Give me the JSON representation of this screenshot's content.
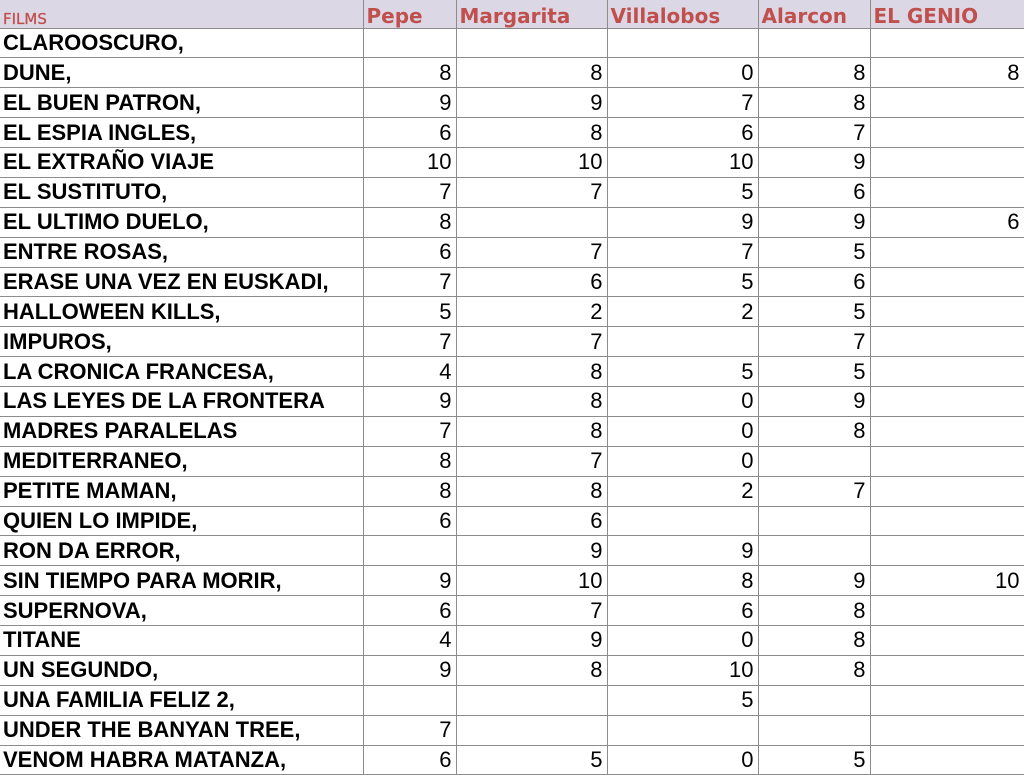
{
  "headers": [
    "FILMS",
    "Pepe",
    "Margarita",
    "Villalobos",
    "Alarcon",
    "EL GENIO"
  ],
  "rows": [
    [
      "CLAROOSCURO,",
      "",
      "",
      "",
      "",
      ""
    ],
    [
      "DUNE,",
      "8",
      "8",
      "0",
      "8",
      "8"
    ],
    [
      "EL BUEN PATRON,",
      "9",
      "9",
      "7",
      "8",
      ""
    ],
    [
      "EL ESPIA INGLES,",
      "6",
      "8",
      "6",
      "7",
      ""
    ],
    [
      "EL EXTRAÑO VIAJE",
      "10",
      "10",
      "10",
      "9",
      ""
    ],
    [
      "EL SUSTITUTO,",
      "7",
      "7",
      "5",
      "6",
      ""
    ],
    [
      "EL ULTIMO DUELO,",
      "8",
      "",
      "9",
      "9",
      "6"
    ],
    [
      "ENTRE ROSAS,",
      "6",
      "7",
      "7",
      "5",
      ""
    ],
    [
      "ERASE UNA VEZ EN EUSKADI,",
      "7",
      "6",
      "5",
      "6",
      ""
    ],
    [
      "HALLOWEEN KILLS,",
      "5",
      "2",
      "2",
      "5",
      ""
    ],
    [
      "IMPUROS,",
      "7",
      "7",
      "",
      "7",
      ""
    ],
    [
      "LA CRONICA FRANCESA,",
      "4",
      "8",
      "5",
      "5",
      ""
    ],
    [
      "LAS LEYES DE LA FRONTERA",
      "9",
      "8",
      "0",
      "9",
      ""
    ],
    [
      "MADRES PARALELAS",
      "7",
      "8",
      "0",
      "8",
      ""
    ],
    [
      "MEDITERRANEO,",
      "8",
      "7",
      "0",
      "",
      ""
    ],
    [
      "PETITE MAMAN,",
      "8",
      "8",
      "2",
      "7",
      ""
    ],
    [
      "QUIEN LO IMPIDE,",
      "6",
      "6",
      "",
      "",
      ""
    ],
    [
      "RON DA ERROR,",
      "",
      "9",
      "9",
      "",
      ""
    ],
    [
      "SIN TIEMPO PARA MORIR,",
      "9",
      "10",
      "8",
      "9",
      "10"
    ],
    [
      "SUPERNOVA,",
      "6",
      "7",
      "6",
      "8",
      ""
    ],
    [
      "TITANE",
      "4",
      "9",
      "0",
      "8",
      ""
    ],
    [
      "UN SEGUNDO,",
      "9",
      "8",
      "10",
      "8",
      ""
    ],
    [
      "UNA FAMILIA FELIZ 2,",
      "",
      "",
      "5",
      "",
      ""
    ],
    [
      "UNDER THE BANYAN TREE,",
      "7",
      "",
      "",
      "",
      ""
    ],
    [
      "VENOM HABRA MATANZA,",
      "6",
      "5",
      "0",
      "5",
      ""
    ]
  ],
  "colors": {
    "header_bg": "#dcd7e5",
    "header_text": "#c0504d",
    "grid": "#8c8c8c"
  }
}
